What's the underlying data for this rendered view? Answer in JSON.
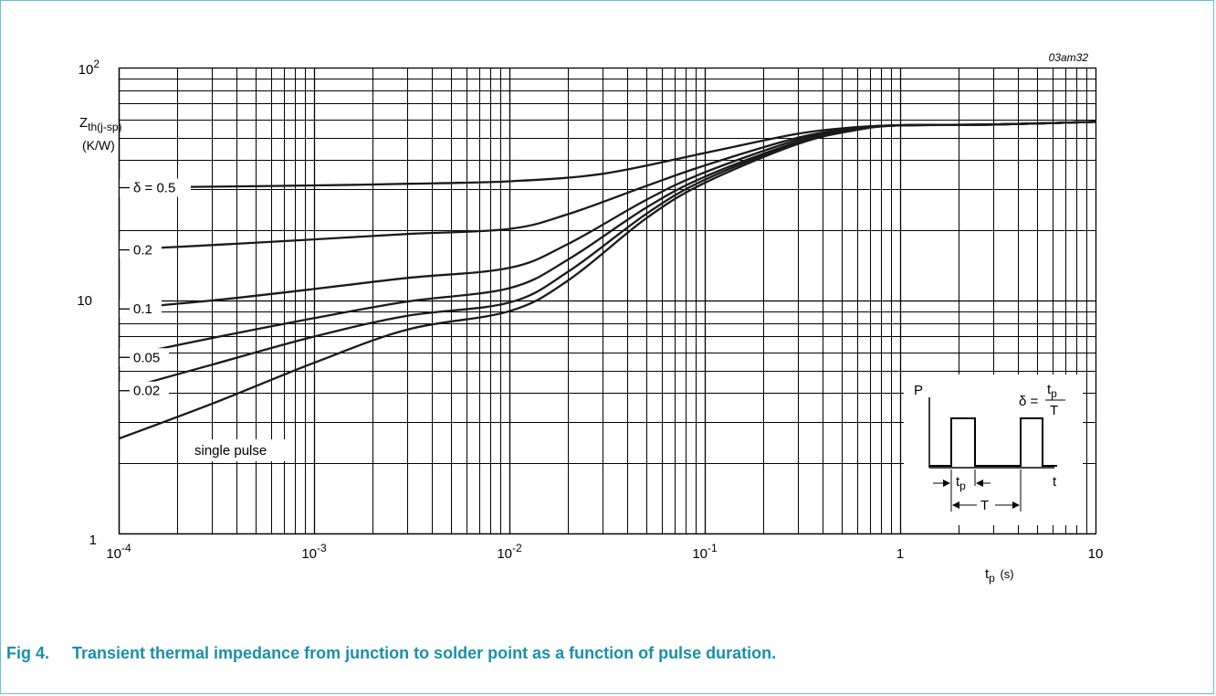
{
  "figure": {
    "code": "03am32",
    "caption_number": "Fig 4.",
    "caption_text": "Transient thermal impedance from junction to solder point as a function of pulse duration."
  },
  "chart_data": {
    "type": "line",
    "x_scale": "log",
    "y_scale": "log",
    "xlim": [
      0.0001,
      10
    ],
    "ylim": [
      1,
      100
    ],
    "grid": true,
    "xlabel": "t",
    "xlabel_sub": "p",
    "xlabel_unit": "(s)",
    "ylabel": "Z",
    "ylabel_sub": "th(j-sp)",
    "ylabel_unit": "(K/W)",
    "x_ticks": [
      {
        "value": 0.0001,
        "base": "10",
        "exp": "-4"
      },
      {
        "value": 0.001,
        "base": "10",
        "exp": "-3"
      },
      {
        "value": 0.01,
        "base": "10",
        "exp": "-2"
      },
      {
        "value": 0.1,
        "base": "10",
        "exp": "-1"
      },
      {
        "value": 1,
        "base": "1",
        "exp": ""
      },
      {
        "value": 10,
        "base": "10",
        "exp": ""
      }
    ],
    "y_ticks": [
      {
        "value": 1,
        "base": "1",
        "exp": ""
      },
      {
        "value": 10,
        "base": "10",
        "exp": ""
      },
      {
        "value": 100,
        "base": "10",
        "exp": "2"
      }
    ],
    "series": [
      {
        "name": "δ = 0.5",
        "x": [
          0.0001,
          0.0003,
          0.001,
          0.003,
          0.01,
          0.03,
          0.1,
          0.3,
          0.6,
          1,
          3,
          10
        ],
        "y": [
          30.5,
          30.8,
          31.2,
          31.7,
          32.5,
          35,
          43,
          52,
          55.5,
          56.5,
          57,
          58.5
        ]
      },
      {
        "name": "0.2",
        "x": [
          0.0001,
          0.0003,
          0.001,
          0.003,
          0.01,
          0.02,
          0.05,
          0.1,
          0.3,
          0.6,
          1,
          3,
          10
        ],
        "y": [
          16.5,
          17.3,
          18.3,
          19.3,
          20.3,
          23.5,
          31,
          38,
          50,
          55,
          56.5,
          57,
          58.5
        ]
      },
      {
        "name": "0.1",
        "x": [
          0.0001,
          0.0003,
          0.001,
          0.003,
          0.01,
          0.02,
          0.05,
          0.1,
          0.3,
          0.6,
          1,
          3,
          10
        ],
        "y": [
          9.2,
          10,
          11.2,
          12.5,
          13.8,
          17.5,
          27,
          35.5,
          49,
          55,
          56.5,
          57,
          58.5
        ]
      },
      {
        "name": "0.05",
        "x": [
          0.0001,
          0.0003,
          0.001,
          0.003,
          0.01,
          0.02,
          0.05,
          0.1,
          0.3,
          0.6,
          1,
          3,
          10
        ],
        "y": [
          5.7,
          6.9,
          8.4,
          9.9,
          11.3,
          15,
          25,
          34,
          48,
          54.5,
          56.5,
          57,
          58.5
        ]
      },
      {
        "name": "0.02",
        "x": [
          0.0001,
          0.0003,
          0.001,
          0.003,
          0.01,
          0.02,
          0.05,
          0.1,
          0.3,
          0.6,
          1,
          3,
          10
        ],
        "y": [
          4.1,
          5.3,
          7.0,
          8.6,
          9.8,
          13.3,
          23.5,
          33,
          47.5,
          54,
          56.5,
          57,
          58.5
        ]
      },
      {
        "name": "single pulse",
        "x": [
          0.0001,
          0.0003,
          0.001,
          0.003,
          0.01,
          0.02,
          0.05,
          0.1,
          0.3,
          0.6,
          1,
          3,
          10
        ],
        "y": [
          2.55,
          3.6,
          5.4,
          7.5,
          9.0,
          12.2,
          22.5,
          32,
          47,
          54,
          56.5,
          57,
          58.5
        ]
      }
    ],
    "series_label_values": {
      "0.5": "0.5",
      "0.2": "0.2",
      "0.1": "0.1",
      "0.05": "0.05",
      "0.02": "0.02",
      "single": "single pulse"
    }
  },
  "inset": {
    "p_label": "P",
    "t_label": "t",
    "tp_label": "t",
    "tp_sub": "p",
    "T_label": "T",
    "delta_symbol": "δ =",
    "delta_numerator": "t",
    "delta_numerator_sub": "p",
    "delta_denominator": "T"
  }
}
